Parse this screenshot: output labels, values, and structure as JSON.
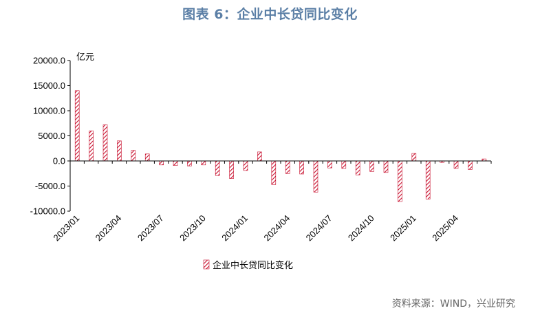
{
  "title": "图表 6：企业中长贷同比变化",
  "source": "资料来源：WIND，兴业研究",
  "colors": {
    "bar_stroke": "#c8102e",
    "title": "#5b7fa6",
    "axis": "#000000"
  },
  "chart_data": {
    "type": "bar",
    "title": "图表 6：企业中长贷同比变化",
    "ylabel": "亿元",
    "xlabel": "",
    "ylim": [
      -10000,
      20000
    ],
    "y_ticks": [
      "20000.0",
      "15000.0",
      "10000.0",
      "5000.0",
      "0.0",
      "-5000.0",
      "-10000.0"
    ],
    "y_tick_values": [
      20000,
      15000,
      10000,
      5000,
      0,
      -5000,
      -10000
    ],
    "x_tick_labels": [
      "2023/01",
      "2023/04",
      "2023/07",
      "2023/10",
      "2024/01",
      "2024/04",
      "2024/07",
      "2024/10",
      "2025/01",
      "2025/04"
    ],
    "x_tick_indices": [
      0,
      3,
      6,
      9,
      12,
      15,
      18,
      21,
      24,
      27
    ],
    "categories": [
      "2023/01",
      "2023/02",
      "2023/03",
      "2023/04",
      "2023/05",
      "2023/06",
      "2023/07",
      "2023/08",
      "2023/09",
      "2023/10",
      "2023/11",
      "2023/12",
      "2024/01",
      "2024/02",
      "2024/03",
      "2024/04",
      "2024/05",
      "2024/06",
      "2024/07",
      "2024/08",
      "2024/09",
      "2024/10",
      "2024/11",
      "2024/12",
      "2025/01",
      "2025/02",
      "2025/03",
      "2025/04",
      "2025/05",
      "2025/06"
    ],
    "series": [
      {
        "name": "企业中长贷同比变化",
        "values": [
          14000,
          6000,
          7200,
          4000,
          2100,
          1400,
          -800,
          -900,
          -1000,
          -800,
          -2900,
          -3500,
          -1900,
          1800,
          -4700,
          -2500,
          -2600,
          -6200,
          -1400,
          -1500,
          -2800,
          -2100,
          -2300,
          -8100,
          1500,
          -7600,
          -300,
          -1500,
          -1700,
          400
        ]
      }
    ],
    "legend": {
      "position": "bottom",
      "label": "企业中长贷同比变化"
    },
    "grid": false
  }
}
